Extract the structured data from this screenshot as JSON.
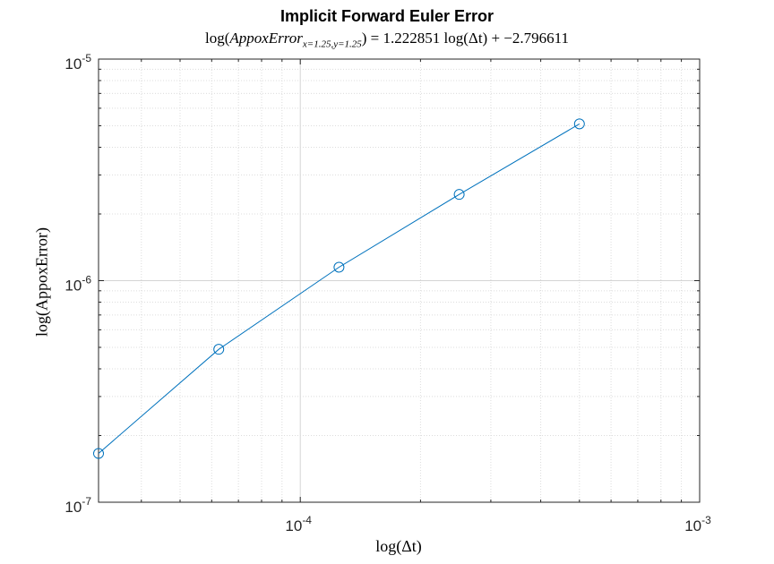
{
  "chart_data": {
    "type": "line",
    "title": "Implicit Forward Euler Error",
    "subtitle": {
      "lhs_prefix": "log(",
      "lhs_var": "AppoxError",
      "lhs_sub": "x=1.25,y=1.25",
      "rhs": ") = 1.222851 log(Δt) + −2.796611"
    },
    "xlabel": "log(Δt)",
    "ylabel": "log(AppoxError)",
    "xscale": "log",
    "yscale": "log",
    "xlim": [
      3.125e-05,
      0.001
    ],
    "ylim": [
      1e-07,
      1e-05
    ],
    "grid": true,
    "minor_grid": true,
    "x_ticks": [
      {
        "value": 0.0001,
        "mantissa": "10",
        "exponent": "-4"
      },
      {
        "value": 0.001,
        "mantissa": "10",
        "exponent": "-3"
      }
    ],
    "y_ticks": [
      {
        "value": 1e-07,
        "mantissa": "10",
        "exponent": "-7"
      },
      {
        "value": 1e-06,
        "mantissa": "10",
        "exponent": "-6"
      },
      {
        "value": 1e-05,
        "mantissa": "10",
        "exponent": "-5"
      }
    ],
    "series": [
      {
        "marker": "circle",
        "color": "#0072BD",
        "x": [
          3.125e-05,
          6.25e-05,
          0.000125,
          0.00025,
          0.0005
        ],
        "y": [
          1.66e-07,
          4.9e-07,
          1.15e-06,
          2.45e-06,
          5.1e-06
        ]
      }
    ]
  }
}
